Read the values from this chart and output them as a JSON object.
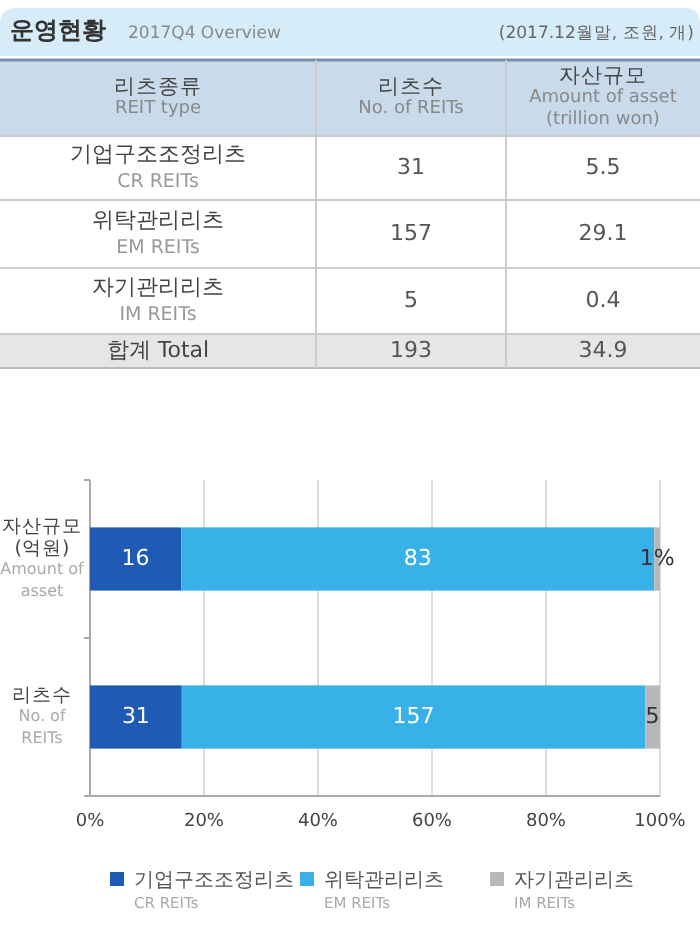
{
  "chart_data": [
    {
      "type": "other",
      "title": "운영현황",
      "subtitle": "2017Q4 Overview",
      "annotations": [
        "(2017.12월말, 조원, 개)"
      ],
      "categories": [
        "리츠종류\nREIT type",
        "리츠수\nNo. of REITs",
        "자산규모\nAmount of asset\n(trillion won)"
      ],
      "y_categories": [
        "기업구조조정리츠\nCR REITs",
        "위탁관리리츠\nEM REITs",
        "자기관리리츠\nIM REITs",
        "합계 Total"
      ],
      "cell_labels": [
        [
          "31",
          "5.5"
        ],
        [
          "157",
          "29.1"
        ],
        [
          "5",
          "0.4"
        ],
        [
          "193",
          "34.9"
        ]
      ]
    },
    {
      "type": "bar",
      "orientation": "horizontal",
      "stacked": true,
      "categories": [
        "자산규모\n(억원)\nAmount of\nasset",
        "리츠수\nNo. of\nREITs"
      ],
      "series": [
        {
          "name": "기업구조조정리츠\nCR REITs",
          "color": "#1f5bb5",
          "values": [
            16,
            16.1
          ],
          "value_labels": [
            "16",
            null
          ]
        },
        {
          "name": "위탁관리리츠\nEM REITs",
          "color": "#38b0e8",
          "values": [
            83,
            81.3
          ],
          "value_labels": [
            "83",
            null
          ]
        },
        {
          "name": "자기관리리츠\nIM REITs",
          "color": "#b8b8b8",
          "values": [
            1,
            2.6
          ],
          "value_labels": [
            "1%",
            null
          ]
        }
      ],
      "annotations": [
        "31",
        "157",
        "5"
      ],
      "xlim": [
        0,
        100
      ],
      "xticks": [
        {
          "value": 0,
          "label": "0%"
        },
        {
          "value": 20,
          "label": "20%"
        },
        {
          "value": 40,
          "label": "40%"
        },
        {
          "value": 60,
          "label": "60%"
        },
        {
          "value": 80,
          "label": "80%"
        },
        {
          "value": 100,
          "label": "100%"
        }
      ],
      "grid": "x",
      "legend": "bottom"
    }
  ]
}
